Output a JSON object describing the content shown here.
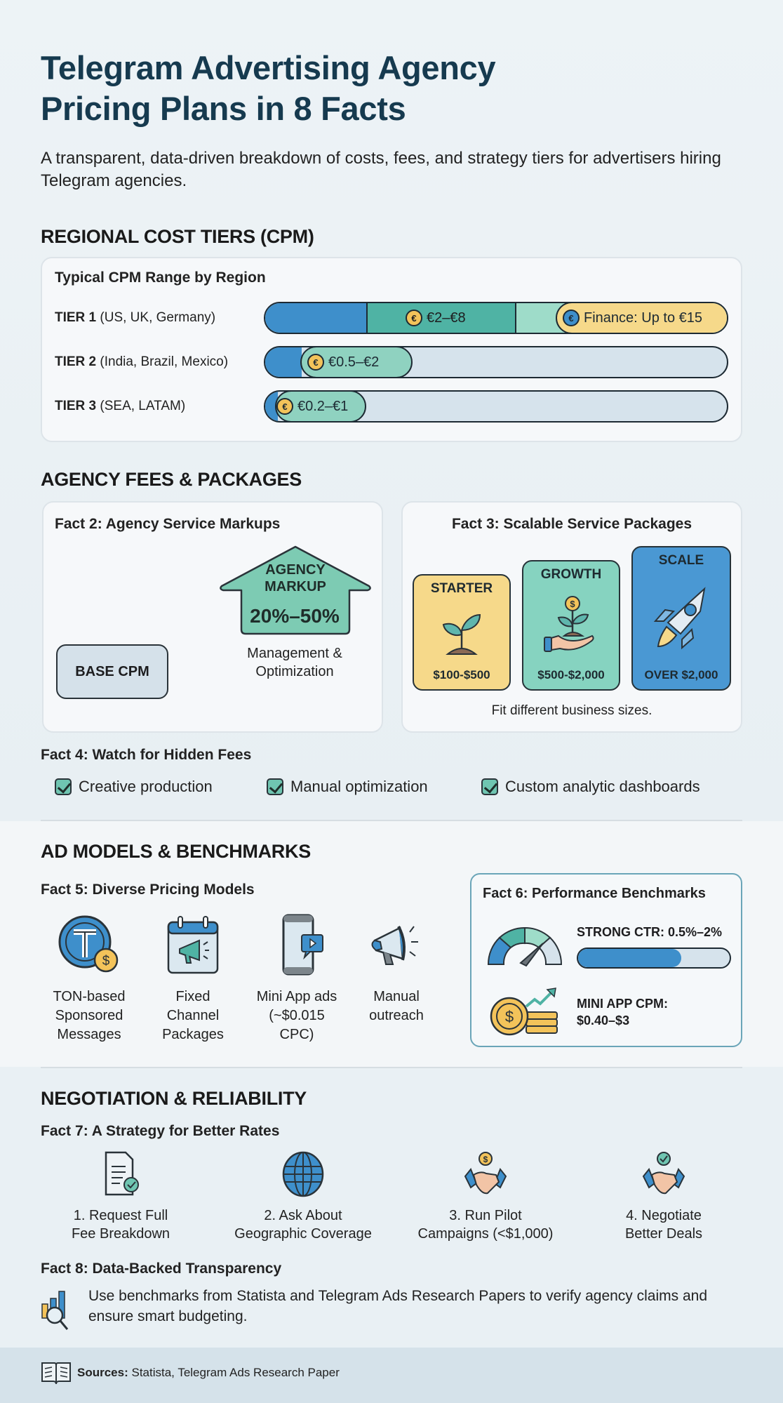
{
  "header": {
    "title_line1": "Telegram Advertising Agency",
    "title_line2": "Pricing Plans in 8 Facts",
    "subtitle": "A transparent, data-driven breakdown of costs, fees, and strategy tiers for advertisers hiring Telegram agencies."
  },
  "regional": {
    "heading": "REGIONAL COST TIERS (CPM)",
    "card_title": "Typical CPM Range by Region",
    "tiers": [
      {
        "tier": "TIER 1",
        "regions": "(US, UK, Germany)",
        "range": "€2–€8",
        "extra": "Finance: Up to €15"
      },
      {
        "tier": "TIER 2",
        "regions": "(India, Brazil, Mexico)",
        "range": "€0.5–€2"
      },
      {
        "tier": "TIER 3",
        "regions": "(SEA, LATAM)",
        "range": "€0.2–€1"
      }
    ],
    "currency_icon": "euro-coin-icon"
  },
  "agency": {
    "heading": "AGENCY FEES & PACKAGES",
    "fact2": {
      "title": "Fact 2: Agency Service Markups",
      "base_label": "BASE CPM",
      "markup_line1": "AGENCY",
      "markup_line2": "MARKUP",
      "markup_value": "20%–50%",
      "caption_line1": "Management &",
      "caption_line2": "Optimization"
    },
    "fact3": {
      "title": "Fact 3: Scalable Service Packages",
      "packages": [
        {
          "name": "STARTER",
          "price": "$100-$500",
          "icon": "sprout-icon",
          "color": "#f6d98a"
        },
        {
          "name": "GROWTH",
          "price": "$500-$2,000",
          "icon": "money-plant-hand-icon",
          "color": "#86d3c0"
        },
        {
          "name": "SCALE",
          "price": "OVER $2,000",
          "icon": "rocket-icon",
          "color": "#4a98d3"
        }
      ],
      "caption": "Fit different business sizes."
    },
    "fact4": {
      "title": "Fact 4: Watch for Hidden Fees",
      "items": [
        "Creative production",
        "Manual optimization",
        "Custom analytic dashboards"
      ]
    }
  },
  "models": {
    "heading": "AD MODELS & BENCHMARKS",
    "fact5": {
      "title": "Fact 5: Diverse Pricing Models",
      "items": [
        {
          "lines": [
            "TON-based",
            "Sponsored",
            "Messages"
          ],
          "icon": "ton-coin-icon"
        },
        {
          "lines": [
            "Fixed",
            "Channel",
            "Packages"
          ],
          "icon": "calendar-megaphone-icon"
        },
        {
          "lines": [
            "Mini App ads",
            "(~$0.015 CPC)"
          ],
          "icon": "phone-video-icon"
        },
        {
          "lines": [
            "Manual",
            "outreach"
          ],
          "icon": "megaphone-icon"
        }
      ]
    },
    "fact6": {
      "title": "Fact 6: Performance Benchmarks",
      "ctr_label": "STRONG CTR: 0.5%–2%",
      "ctr_fill_pct": 68,
      "cpm_line1": "MINI APP CPM:",
      "cpm_line2": "$0.40–$3"
    }
  },
  "negotiation": {
    "heading": "NEGOTIATION & RELIABILITY",
    "fact7": {
      "title": "Fact 7: A Strategy for Better Rates",
      "steps": [
        {
          "line1": "1. Request Full",
          "line2": "Fee Breakdown",
          "icon": "document-check-icon"
        },
        {
          "line1": "2. Ask About",
          "line2": "Geographic Coverage",
          "icon": "globe-icon"
        },
        {
          "line1": "3. Run Pilot",
          "line2": "Campaigns (<$1,000)",
          "icon": "handshake-dollar-icon"
        },
        {
          "line1": "4. Negotiate",
          "line2": "Better Deals",
          "icon": "handshake-check-icon"
        }
      ]
    },
    "fact8": {
      "title": "Fact 8: Data-Backed Transparency",
      "text": "Use benchmarks from Statista and Telegram Ads Research Papers to verify agency claims and ensure smart budgeting."
    }
  },
  "footer": {
    "sources_label": "Sources:",
    "sources_text": "Statista, Telegram Ads Research Paper"
  },
  "colors": {
    "title": "#163a4f",
    "blue": "#3e8fcb",
    "teal": "#4fb3a4",
    "mint": "#9edcc9",
    "gold": "#f6d98a",
    "bar_track": "#d6e3ec"
  }
}
